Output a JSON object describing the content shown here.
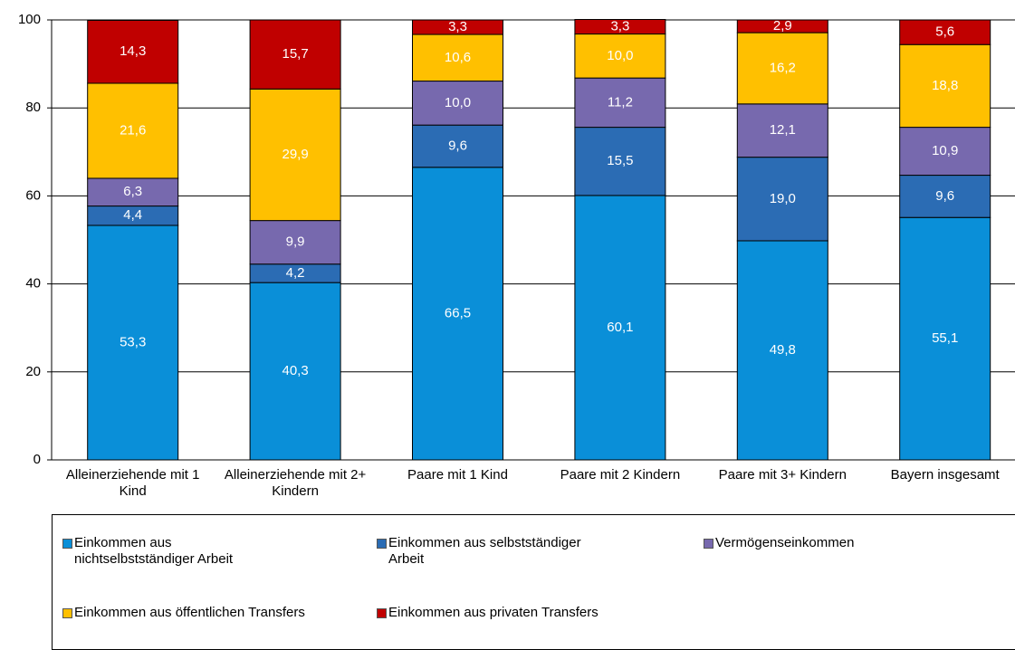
{
  "chart_data": {
    "type": "stacked_bar",
    "categories": [
      "Alleinerziehende mit 1 Kind",
      "Alleinerziehende mit 2+ Kindern",
      "Paare mit 1 Kind",
      "Paare mit 2 Kindern",
      "Paare mit 3+ Kindern",
      "Bayern insgesamt"
    ],
    "series": [
      {
        "name": "Einkommen aus nichtselbstständiger Arbeit",
        "color": "#0a8fd8",
        "values": [
          53.3,
          40.3,
          66.5,
          60.1,
          49.8,
          55.1
        ],
        "value_labels": [
          "53,3",
          "40,3",
          "66,5",
          "60,1",
          "49,8",
          "55,1"
        ]
      },
      {
        "name": "Einkommen aus selbstständiger Arbeit",
        "color": "#2b6cb4",
        "values": [
          4.4,
          4.2,
          9.6,
          15.5,
          19.0,
          9.6
        ],
        "value_labels": [
          "4,4",
          "4,2",
          "9,6",
          "15,5",
          "19,0",
          "9,6"
        ]
      },
      {
        "name": "Vermögenseinkommen",
        "color": "#7769ae",
        "values": [
          6.3,
          9.9,
          10.0,
          11.2,
          12.1,
          10.9
        ],
        "value_labels": [
          "6,3",
          "9,9",
          "10,0",
          "11,2",
          "12,1",
          "10,9"
        ]
      },
      {
        "name": "Einkommen aus öffentlichen Transfers",
        "color": "#ffc000",
        "values": [
          21.6,
          29.9,
          10.6,
          10.0,
          16.2,
          18.8
        ],
        "value_labels": [
          "21,6",
          "29,9",
          "10,6",
          "10,0",
          "16,2",
          "18,8"
        ]
      },
      {
        "name": "Einkommen aus privaten Transfers",
        "color": "#c00000",
        "values": [
          14.3,
          15.7,
          3.3,
          3.3,
          2.9,
          5.6
        ],
        "value_labels": [
          "14,3",
          "15,7",
          "3,3",
          "3,3",
          "2,9",
          "5,6"
        ]
      }
    ],
    "ylim": [
      0,
      100
    ],
    "yticks": [
      0,
      20,
      40,
      60,
      80,
      100
    ],
    "grid": true
  }
}
